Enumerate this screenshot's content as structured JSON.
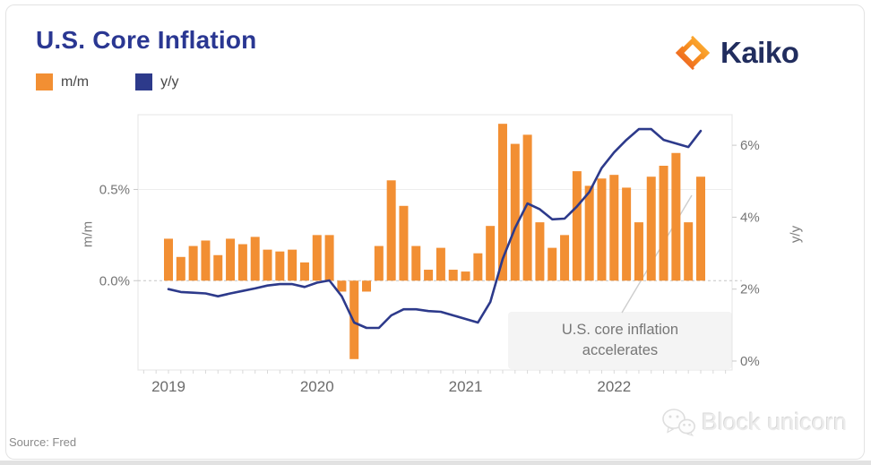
{
  "header": {
    "title": "U.S. Core Inflation",
    "brand": "Kaiko"
  },
  "legend": [
    {
      "label": "m/m",
      "color": "#F28F33"
    },
    {
      "label": "y/y",
      "color": "#2D3A8B"
    }
  ],
  "source": "Source: Fred",
  "watermark": "Block unicorn",
  "chart_data": {
    "type": "bar+line",
    "title": "U.S. Core Inflation",
    "x_start": "2019-01",
    "x_frequency": "monthly",
    "x_tick_labels": [
      "2019",
      "2020",
      "2021",
      "2022"
    ],
    "x_tick_month_index": [
      0,
      12,
      24,
      36
    ],
    "left_axis": {
      "title": "m/m",
      "tick_labels": [
        "0.5%",
        "0.0%"
      ],
      "tick_values": [
        0.5,
        0
      ],
      "range": [
        -0.49,
        0.91
      ],
      "zero_line_style": "dashed"
    },
    "right_axis": {
      "title": "y/y",
      "tick_labels": [
        "6%",
        "4%",
        "2%",
        "0%"
      ],
      "tick_values": [
        6,
        4,
        2,
        0
      ],
      "range": [
        -0.25,
        6.85
      ]
    },
    "series": [
      {
        "name": "m/m",
        "type": "bar",
        "axis": "left",
        "color": "#F28F33",
        "values": [
          0.23,
          0.13,
          0.19,
          0.22,
          0.14,
          0.23,
          0.2,
          0.24,
          0.17,
          0.16,
          0.17,
          0.1,
          0.25,
          0.25,
          -0.06,
          -0.43,
          -0.06,
          0.19,
          0.55,
          0.41,
          0.19,
          0.06,
          0.18,
          0.06,
          0.05,
          0.15,
          0.3,
          0.86,
          0.75,
          0.8,
          0.32,
          0.18,
          0.25,
          0.6,
          0.52,
          0.56,
          0.58,
          0.51,
          0.32,
          0.57,
          0.63,
          0.7,
          0.32,
          0.57
        ]
      },
      {
        "name": "y/y",
        "type": "line",
        "axis": "right",
        "color": "#2D3A8B",
        "values": [
          2.0,
          1.92,
          1.9,
          1.88,
          1.8,
          1.88,
          1.95,
          2.02,
          2.1,
          2.14,
          2.14,
          2.06,
          2.18,
          2.24,
          1.8,
          1.07,
          0.92,
          0.92,
          1.27,
          1.44,
          1.44,
          1.39,
          1.37,
          1.27,
          1.17,
          1.07,
          1.64,
          2.84,
          3.7,
          4.38,
          4.22,
          3.94,
          3.96,
          4.3,
          4.7,
          5.37,
          5.8,
          6.15,
          6.45,
          6.45,
          6.15,
          6.05,
          5.95,
          6.4
        ]
      }
    ],
    "annotation": {
      "line1": "U.S. core inflation",
      "line2": "accelerates"
    }
  }
}
